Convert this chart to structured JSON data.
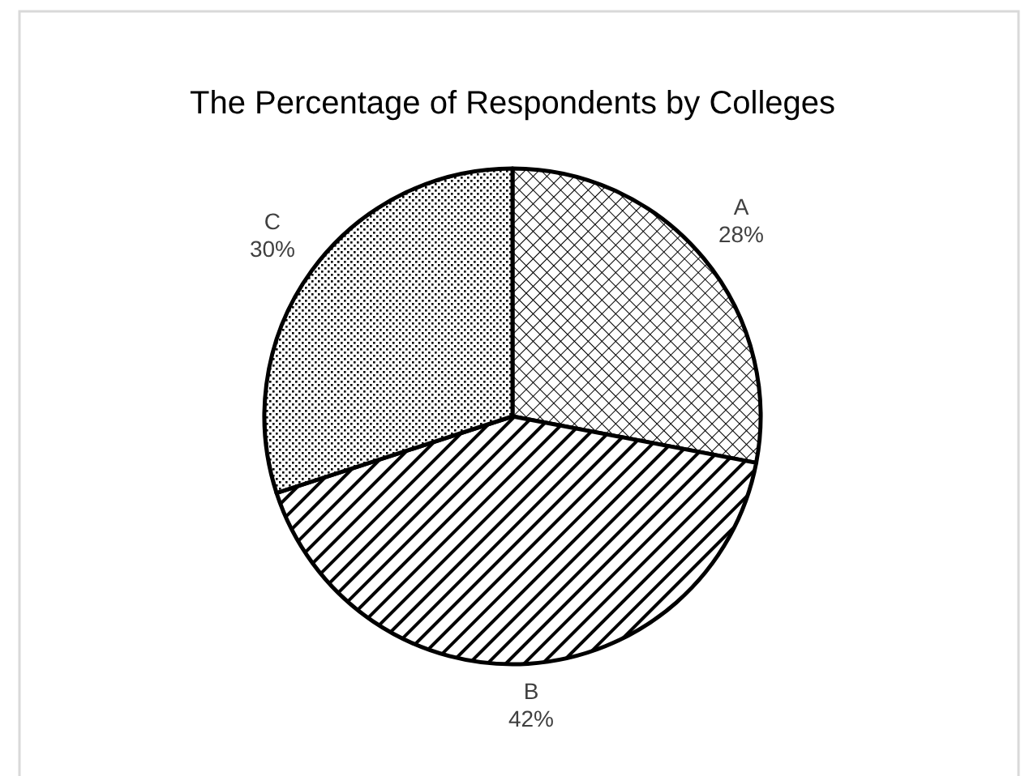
{
  "chart_data": {
    "type": "pie",
    "title": "The Percentage of Respondents by Colleges",
    "categories": [
      "A",
      "B",
      "C"
    ],
    "values": [
      28,
      42,
      30
    ],
    "colors": [
      "#000000",
      "#000000",
      "#000000"
    ],
    "value_labels": [
      "28%",
      "42%",
      "30%"
    ]
  }
}
